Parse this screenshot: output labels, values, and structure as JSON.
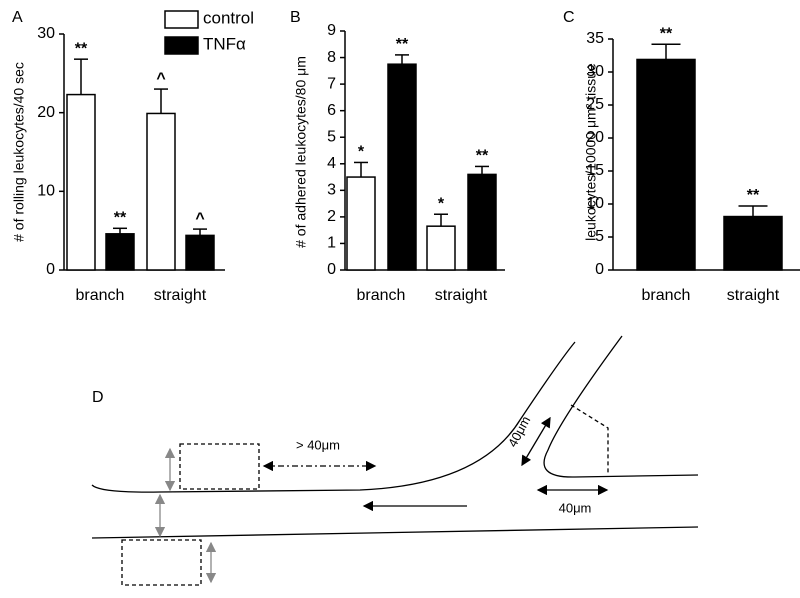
{
  "chart_data": [
    {
      "type": "bar",
      "panel": "A",
      "ylabel": "# of rolling leukocytes/40 sec",
      "categories": [
        "branch",
        "straight"
      ],
      "series": [
        {
          "name": "control",
          "color": "#ffffff",
          "values": [
            22.3,
            19.9
          ],
          "errors": [
            4.5,
            3.1
          ],
          "annotations": [
            "**",
            "^"
          ]
        },
        {
          "name": "TNFα",
          "color": "#000000",
          "values": [
            4.6,
            4.4
          ],
          "errors": [
            0.7,
            0.8
          ],
          "annotations": [
            "**",
            "^"
          ]
        }
      ],
      "ylim": [
        0,
        30
      ],
      "yticks": [
        0,
        10,
        20,
        30
      ],
      "legend": "top-right"
    },
    {
      "type": "bar",
      "panel": "B",
      "ylabel": "# of adhered leukocytes/80 μm",
      "categories": [
        "branch",
        "straight"
      ],
      "series": [
        {
          "name": "control",
          "color": "#ffffff",
          "values": [
            3.5,
            1.65
          ],
          "errors": [
            0.55,
            0.45
          ],
          "annotations": [
            "*",
            "*"
          ]
        },
        {
          "name": "TNFα",
          "color": "#000000",
          "values": [
            7.75,
            3.6
          ],
          "errors": [
            0.35,
            0.3
          ],
          "annotations": [
            "**",
            "**"
          ]
        }
      ],
      "ylim": [
        0,
        9
      ],
      "yticks": [
        0,
        1,
        2,
        3,
        4,
        5,
        6,
        7,
        8,
        9
      ]
    },
    {
      "type": "bar",
      "panel": "C",
      "ylabel": "leukocytes/10000 μm² tissue",
      "categories": [
        "branch",
        "straight"
      ],
      "series": [
        {
          "name": "TNFα",
          "color": "#000000",
          "values": [
            31.9,
            8.1
          ],
          "errors": [
            2.3,
            1.6
          ],
          "annotations": [
            "**",
            "**"
          ]
        }
      ],
      "ylim": [
        0,
        35
      ],
      "yticks": [
        0,
        5,
        10,
        15,
        20,
        25,
        30,
        35
      ]
    }
  ],
  "diagram": {
    "label": "D",
    "gap_label": "> 40μm",
    "branch_label": "40μm",
    "downstream_label": "40μm"
  }
}
